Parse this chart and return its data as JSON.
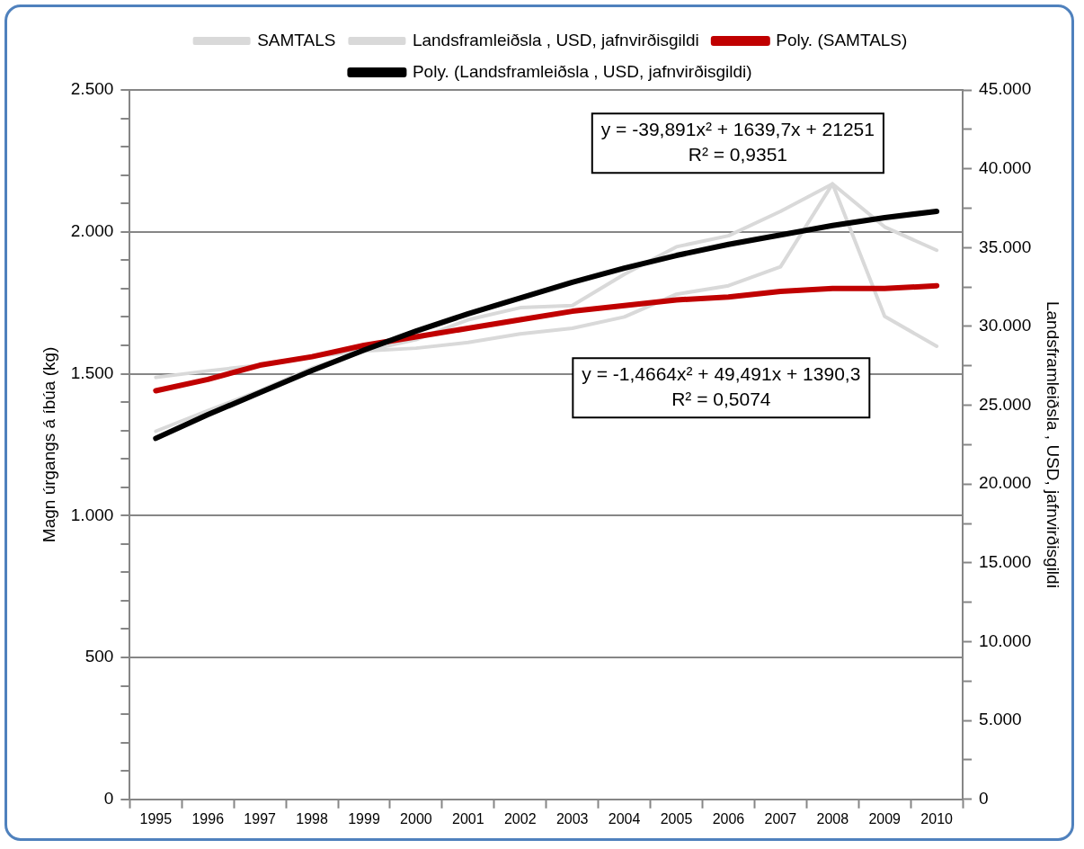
{
  "chart_data": {
    "type": "line",
    "categories": [
      "1995",
      "1996",
      "1997",
      "1998",
      "1999",
      "2000",
      "2001",
      "2002",
      "2003",
      "2004",
      "2005",
      "2006",
      "2007",
      "2008",
      "2009",
      "2010"
    ],
    "series": [
      {
        "name": "SAMTALS",
        "color": "#d9d9d9",
        "values": [
          1487,
          1510,
          1530,
          1560,
          1580,
          1590,
          1610,
          1640,
          1660,
          1700,
          1780,
          1810,
          1877,
          2169,
          1702,
          1597
        ]
      },
      {
        "name": "Landsframleiðsla , USD, jafnvirðisgildi",
        "color": "#d9d9d9",
        "axis": "y2",
        "values": [
          23350,
          24660,
          25920,
          27360,
          28440,
          29160,
          30420,
          31190,
          31320,
          33300,
          35050,
          35750,
          37300,
          39040,
          36310,
          34830
        ]
      },
      {
        "name": "Poly. (SAMTALS)",
        "color": "#c00000",
        "values": [
          1440,
          1480,
          1530,
          1560,
          1600,
          1630,
          1660,
          1690,
          1720,
          1740,
          1760,
          1770,
          1790,
          1800,
          1800,
          1810
        ]
      },
      {
        "name": "Poly. (Landsframleiðsla , USD, jafnvirðisgildi)",
        "color": "#000000",
        "axis": "y2",
        "values": [
          22900,
          24400,
          25800,
          27200,
          28500,
          29700,
          30800,
          31800,
          32800,
          33700,
          34500,
          35200,
          35800,
          36400,
          36900,
          37300
        ]
      }
    ],
    "ylabel": "Magn úrgangs á íbúa (kg)",
    "y2label": "Landsframleiðsla , USD, jafnvirðisgildi",
    "ylim": [
      0,
      2500
    ],
    "yticks": [
      {
        "value": 0,
        "label": "0"
      },
      {
        "value": 100,
        "label": null
      },
      {
        "value": 200,
        "label": null
      },
      {
        "value": 300,
        "label": null
      },
      {
        "value": 400,
        "label": null
      },
      {
        "value": 500,
        "label": "500"
      },
      {
        "value": 600,
        "label": null
      },
      {
        "value": 700,
        "label": null
      },
      {
        "value": 800,
        "label": null
      },
      {
        "value": 900,
        "label": null
      },
      {
        "value": 1000,
        "label": "1.000"
      },
      {
        "value": 1100,
        "label": null
      },
      {
        "value": 1200,
        "label": null
      },
      {
        "value": 1300,
        "label": null
      },
      {
        "value": 1400,
        "label": null
      },
      {
        "value": 1500,
        "label": "1.500"
      },
      {
        "value": 1600,
        "label": null
      },
      {
        "value": 1700,
        "label": null
      },
      {
        "value": 1800,
        "label": null
      },
      {
        "value": 1900,
        "label": null
      },
      {
        "value": 2000,
        "label": "2.000"
      },
      {
        "value": 2100,
        "label": null
      },
      {
        "value": 2200,
        "label": null
      },
      {
        "value": 2300,
        "label": null
      },
      {
        "value": 2400,
        "label": null
      },
      {
        "value": 2500,
        "label": "2.500"
      }
    ],
    "y2lim": [
      0,
      45000
    ],
    "y2ticks": [
      {
        "value": 0,
        "label": "0"
      },
      {
        "value": 2500,
        "label": null
      },
      {
        "value": 5000,
        "label": "5.000"
      },
      {
        "value": 7500,
        "label": null
      },
      {
        "value": 10000,
        "label": "10.000"
      },
      {
        "value": 12500,
        "label": null
      },
      {
        "value": 15000,
        "label": "15.000"
      },
      {
        "value": 17500,
        "label": null
      },
      {
        "value": 20000,
        "label": "20.000"
      },
      {
        "value": 22500,
        "label": null
      },
      {
        "value": 25000,
        "label": "25.000"
      },
      {
        "value": 27500,
        "label": null
      },
      {
        "value": 30000,
        "label": "30.000"
      },
      {
        "value": 32500,
        "label": null
      },
      {
        "value": 35000,
        "label": "35.000"
      },
      {
        "value": 37500,
        "label": null
      },
      {
        "value": 40000,
        "label": "40.000"
      },
      {
        "value": 42500,
        "label": null
      },
      {
        "value": 45000,
        "label": "45.000"
      }
    ],
    "annotations": [
      "y = -39,891x² + 1639,7x + 21251\nR² = 0,9351",
      "y = -1,4664x² + 49,491x + 1390,3\nR² = 0,5074"
    ],
    "grid": "y",
    "legend": "top",
    "marker": "none",
    "line_style": "solid"
  }
}
